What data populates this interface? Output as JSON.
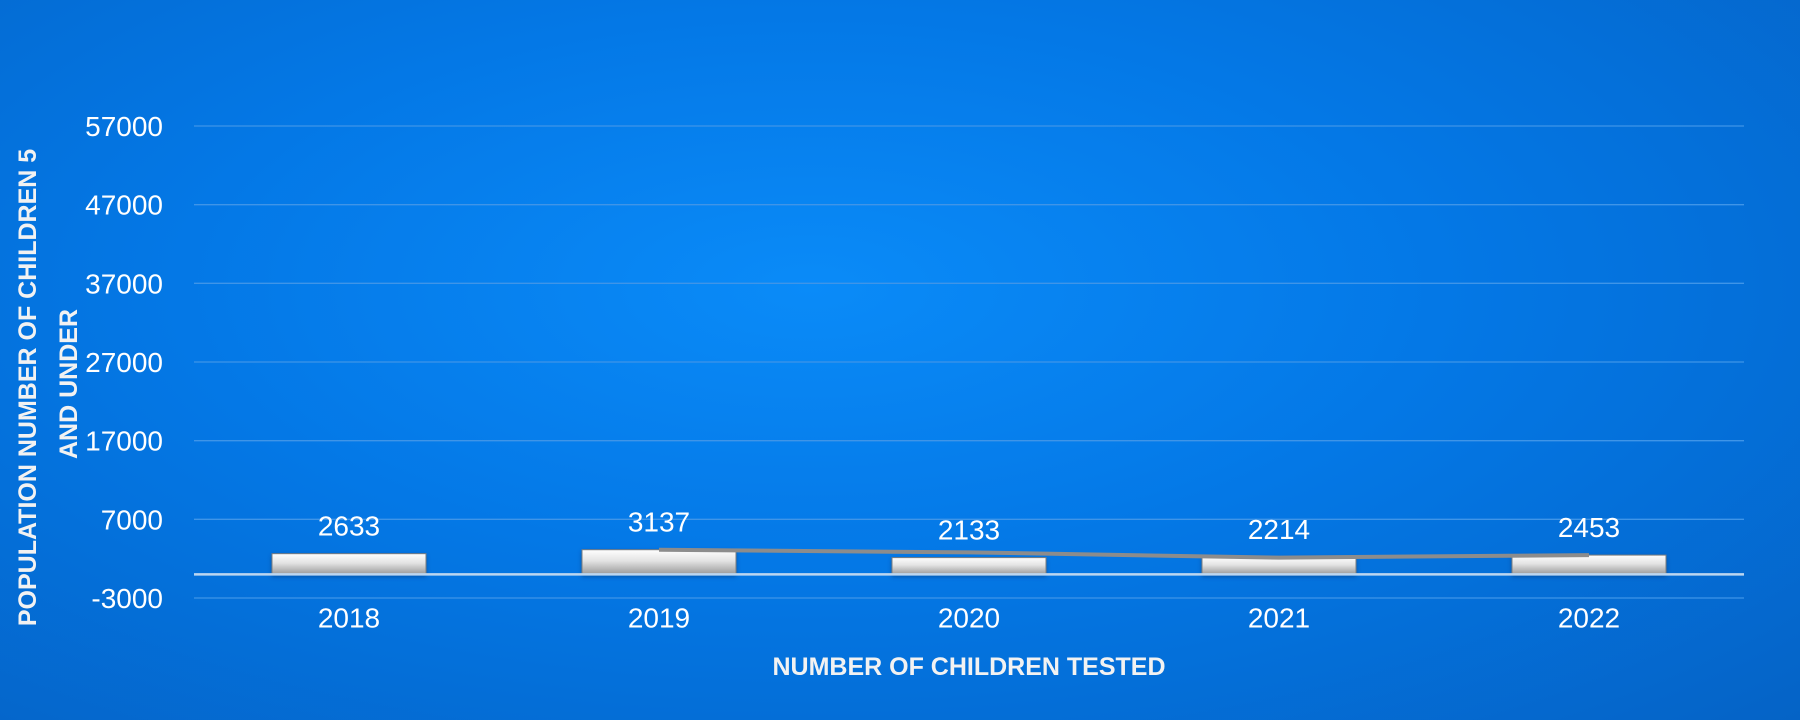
{
  "chart_data": {
    "type": "bar",
    "categories": [
      "2018",
      "2019",
      "2020",
      "2021",
      "2022"
    ],
    "values": [
      2633,
      3137,
      2133,
      2214,
      2453
    ],
    "line_overlay": {
      "x": [
        "2019",
        "2020",
        "2021",
        "2022"
      ],
      "values": [
        3137,
        2800,
        2133,
        2453
      ]
    },
    "title": "",
    "xlabel": "NUMBER OF CHILDREN TESTED",
    "ylabel": "POPULATION NUMBER OF CHILDREN 5 AND UNDER",
    "ylabel_lines": [
      "POPULATION NUMBER OF CHILDREN 5",
      "AND UNDER"
    ],
    "yticks": [
      -3000,
      7000,
      17000,
      27000,
      37000,
      47000,
      57000
    ],
    "ylim": [
      -3000,
      57000
    ],
    "grid": true,
    "legend": "none",
    "colors": {
      "background": "#0478e6",
      "bar_light": "#ffffff",
      "bar_dark": "#9a9a9a",
      "line": "#8c8c8c",
      "gridline": "#3f95e8",
      "axis": "#bcd6f0",
      "text": "#ffffff"
    }
  }
}
